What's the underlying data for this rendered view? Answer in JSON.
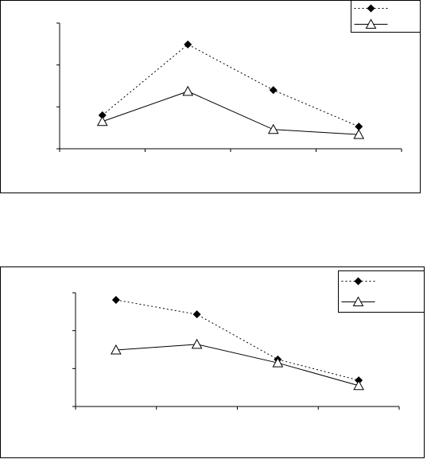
{
  "chart_data": [
    {
      "type": "line",
      "categories": [
        null,
        null,
        null,
        null
      ],
      "ylim": [
        0,
        3
      ],
      "yticks": [
        0,
        1,
        2,
        3
      ],
      "legend": "top-right",
      "series": [
        {
          "color": "#000000",
          "style": "dotted",
          "marker": "diamond",
          "values": [
            0.8,
            2.49,
            1.4,
            0.53
          ]
        },
        {
          "color": "#000000",
          "style": "solid",
          "marker": "triangle",
          "values": [
            0.65,
            1.37,
            0.46,
            0.34
          ]
        }
      ]
    },
    {
      "type": "line",
      "categories": [
        null,
        null,
        null,
        null
      ],
      "ylim": [
        0,
        3
      ],
      "yticks": [
        0,
        1,
        2,
        3
      ],
      "legend": "top-right",
      "series": [
        {
          "color": "#000000",
          "style": "dotted",
          "marker": "diamond",
          "values": [
            2.81,
            2.43,
            1.24,
            0.69
          ]
        },
        {
          "color": "#000000",
          "style": "solid",
          "marker": "triangle",
          "values": [
            1.49,
            1.64,
            1.15,
            0.55
          ]
        }
      ]
    }
  ]
}
